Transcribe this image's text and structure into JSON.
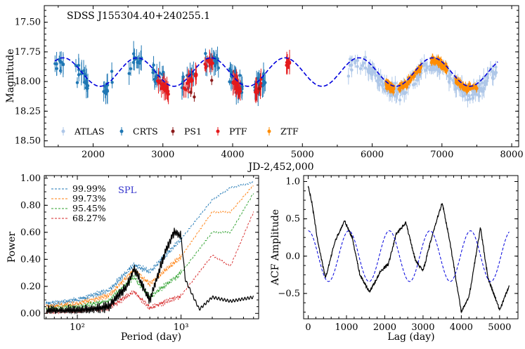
{
  "chart_data": [
    {
      "type": "scatter",
      "title": "SDSS J155304.40+240255.1",
      "xlabel": "JD-2,452,000",
      "ylabel": "Magnitude",
      "xlim": [
        1300,
        8100
      ],
      "ylim": [
        18.55,
        17.36
      ],
      "y_inverted": true,
      "xticks": [
        1000,
        2000,
        3000,
        4000,
        5000,
        6000,
        7000,
        8000
      ],
      "xtick_labels": [
        "1000",
        "2000",
        "3000",
        "4000",
        "5000",
        "6000",
        "7000",
        "8000"
      ],
      "yticks": [
        17.5,
        17.75,
        18.0,
        18.25,
        18.5
      ],
      "ytick_labels": [
        "17.50",
        "17.75",
        "18.00",
        "18.25",
        "18.50"
      ],
      "legend_position": "bottom-left",
      "series": [
        {
          "name": "ATLAS",
          "color": "#aec7e8",
          "marker": "circle-errorbar",
          "x_range": [
            5650,
            7800
          ],
          "mean": 17.97,
          "amplitude": 0.2,
          "scatter": 0.05
        },
        {
          "name": "CRTS",
          "color": "#1f77b4",
          "marker": "circle-errorbar",
          "x_range": [
            1450,
            4480
          ],
          "mean": 17.95,
          "amplitude": 0.1,
          "scatter": 0.07
        },
        {
          "name": "PS1",
          "color": "#8b1a1a",
          "marker": "circle-errorbar",
          "x": [
            3400,
            3450,
            3700,
            4380
          ],
          "y": [
            18.09,
            18.13,
            17.99,
            18.06
          ]
        },
        {
          "name": "PTF",
          "color": "#e41a1c",
          "marker": "circle-errorbar",
          "x_range": [
            2920,
            4830
          ],
          "mean": 17.97,
          "amplitude": 0.15,
          "scatter": 0.03
        },
        {
          "name": "ZTF",
          "color": "#ff8c00",
          "marker": "circle-errorbar",
          "x_range": [
            6200,
            7500
          ],
          "mean": 17.94,
          "amplitude": 0.18,
          "scatter": 0.025
        }
      ],
      "model": {
        "type": "sinusoid",
        "color": "#0000dd",
        "style": "dashed",
        "period": 1060,
        "amplitude": 0.12,
        "mean": 17.92,
        "phase_zero_jd": 2100,
        "x_range": [
          1450,
          7800
        ]
      }
    },
    {
      "type": "line",
      "xlabel": "Period (day)",
      "ylabel": "Power",
      "x_scale": "log",
      "xlim": [
        48,
        5600
      ],
      "ylim": [
        -0.04,
        1.02
      ],
      "xticks": [
        100,
        1000
      ],
      "xtick_labels": [
        "10²",
        "10³"
      ],
      "yticks": [
        0,
        0.2,
        0.4,
        0.6,
        0.8,
        1.0
      ],
      "ytick_labels": [
        "0.00",
        "0.20",
        "0.40",
        "0.60",
        "0.80",
        "1.00"
      ],
      "legend_position": "top-left",
      "annotation": {
        "text": "SPL",
        "color": "#3333cc"
      },
      "series": [
        {
          "name": "99.99%",
          "color": "#1f77b4",
          "style": "dashed",
          "x": [
            50,
            100,
            200,
            350,
            500,
            1000,
            2000,
            3000,
            5000
          ],
          "y": [
            0.07,
            0.1,
            0.17,
            0.36,
            0.31,
            0.55,
            0.84,
            0.93,
            0.97
          ]
        },
        {
          "name": "99.73%",
          "color": "#ff7f0e",
          "style": "dashed",
          "x": [
            50,
            100,
            200,
            350,
            500,
            1000,
            2000,
            3000,
            5000
          ],
          "y": [
            0.05,
            0.07,
            0.13,
            0.32,
            0.22,
            0.42,
            0.75,
            0.75,
            0.95
          ]
        },
        {
          "name": "95.45%",
          "color": "#2ca02c",
          "style": "dashed",
          "x": [
            50,
            100,
            200,
            350,
            500,
            1000,
            2000,
            3000,
            5000
          ],
          "y": [
            0.03,
            0.05,
            0.09,
            0.27,
            0.12,
            0.3,
            0.6,
            0.6,
            0.89
          ]
        },
        {
          "name": "68.27%",
          "color": "#d62728",
          "style": "dashed",
          "x": [
            50,
            100,
            200,
            350,
            500,
            1000,
            2000,
            3000,
            5000
          ],
          "y": [
            0.01,
            0.02,
            0.04,
            0.16,
            0.04,
            0.13,
            0.43,
            0.35,
            0.75
          ]
        },
        {
          "color": "#000000",
          "style": "solid",
          "x": [
            50,
            100,
            200,
            300,
            350,
            500,
            700,
            850,
            1000,
            1100,
            1300,
            1500,
            2000,
            3000,
            5000
          ],
          "y": [
            0.02,
            0.02,
            0.05,
            0.2,
            0.33,
            0.1,
            0.45,
            0.6,
            0.57,
            0.25,
            0.13,
            0.03,
            0.12,
            0.09,
            0.12
          ]
        }
      ]
    },
    {
      "type": "line",
      "xlabel": "Lag (day)",
      "ylabel": "ACF Amplitude",
      "xlim": [
        -120,
        5480
      ],
      "ylim": [
        -0.84,
        1.08
      ],
      "xticks": [
        0,
        1000,
        2000,
        3000,
        4000,
        5000
      ],
      "xtick_labels": [
        "0",
        "1000",
        "2000",
        "3000",
        "4000",
        "5000"
      ],
      "yticks": [
        -0.5,
        0,
        0.5,
        1.0
      ],
      "ytick_labels": [
        "−0.5",
        "0.0",
        "0.5",
        "1.0"
      ],
      "series": [
        {
          "color": "#000000",
          "style": "solid",
          "x": [
            0,
            100,
            250,
            450,
            700,
            950,
            1150,
            1350,
            1600,
            1900,
            2100,
            2300,
            2550,
            2800,
            3000,
            3250,
            3500,
            3700,
            4000,
            4200,
            4500,
            4700,
            5000,
            5250
          ],
          "y": [
            0.95,
            0.7,
            0.2,
            -0.3,
            0.2,
            0.47,
            0.25,
            -0.25,
            -0.48,
            -0.2,
            -0.1,
            0.3,
            0.45,
            -0.05,
            -0.2,
            0.3,
            0.72,
            0.2,
            -0.75,
            -0.55,
            0.38,
            -0.3,
            -0.72,
            -0.4
          ]
        },
        {
          "color": "#0000dd",
          "style": "dashed",
          "model": "cosine",
          "period": 1060,
          "amplitude": 0.34,
          "mean": 0.0,
          "x_range": [
            0,
            5250
          ]
        }
      ]
    }
  ]
}
